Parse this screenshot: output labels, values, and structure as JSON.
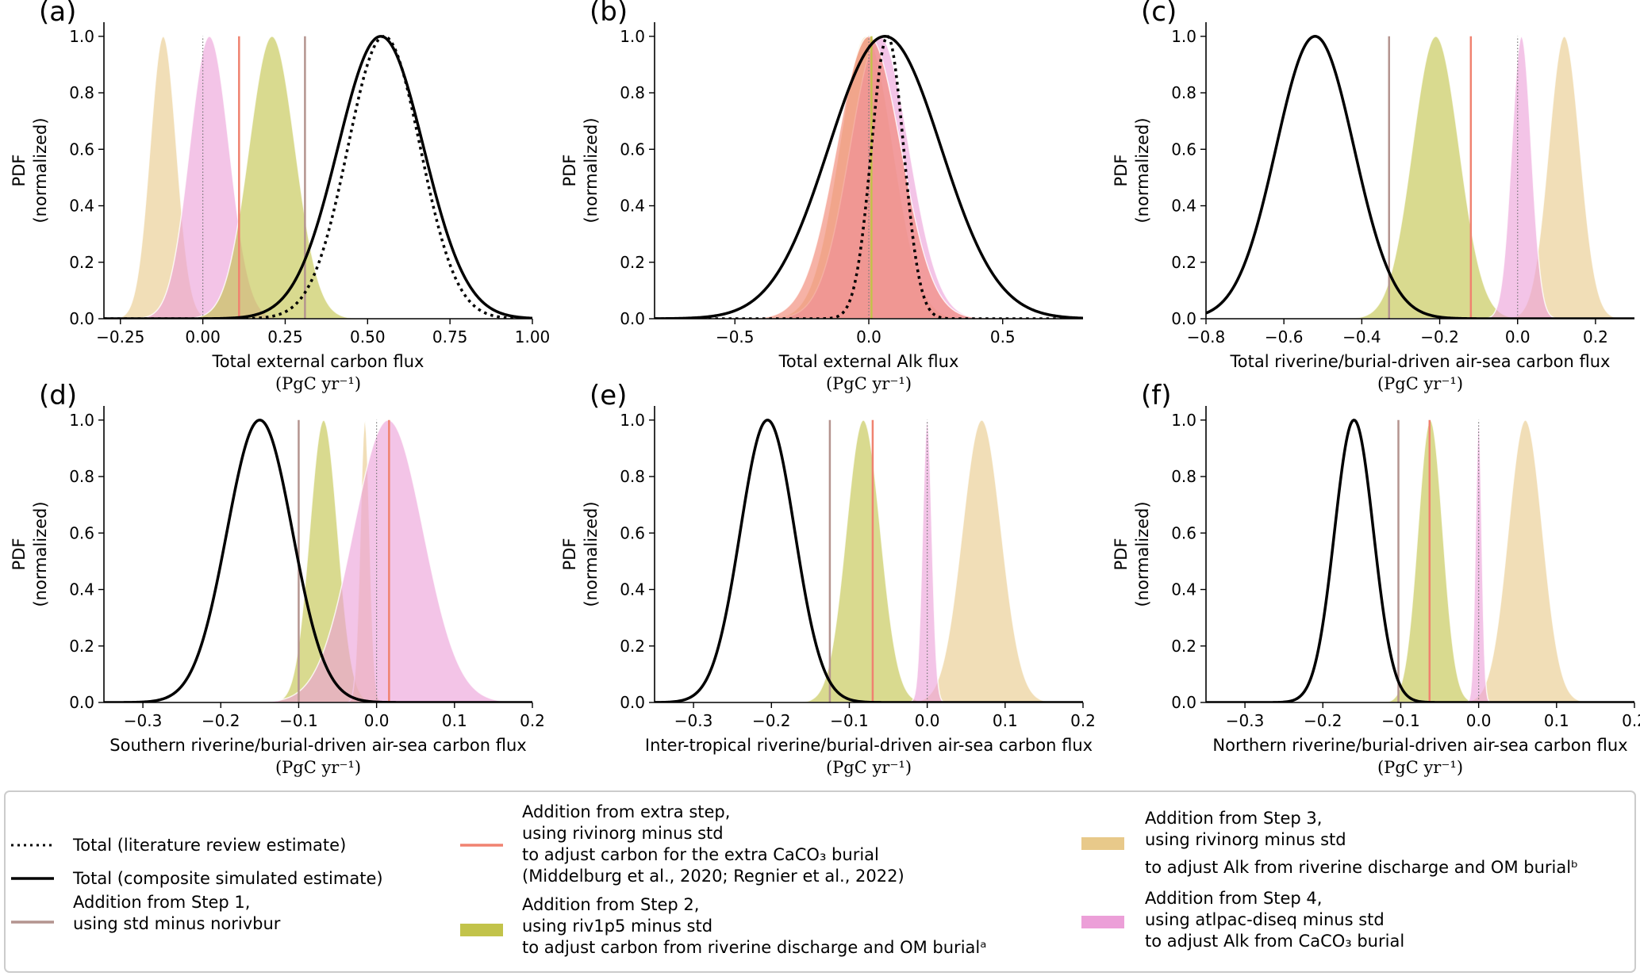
{
  "figure": {
    "y_label_line1": "PDF",
    "y_label_line2": "(normalized)",
    "unit_label": "(PgC yr⁻¹)"
  },
  "legend": {
    "literature": "Total (literature review estimate)",
    "composite": "Total (composite simulated estimate)",
    "step1": [
      "Addition from Step 1,",
      "using std minus norivbur"
    ],
    "extra": [
      "Addition from extra step,",
      "using rivinorg minus std",
      "to adjust carbon for the extra CaCO₃ burial",
      "(Middelburg et al., 2020; Regnier et al., 2022)"
    ],
    "step2": [
      "Addition from Step 2,",
      "using riv1p5 minus std",
      "to adjust carbon from riverine discharge and OM burialᵃ"
    ],
    "step3": [
      "Addition from Step 3,",
      "using rivinorg minus std",
      "to adjust Alk from riverine discharge and OM burialᵇ"
    ],
    "step4": [
      "Addition from Step 4,",
      "using atlpac-diseq minus std",
      "to adjust Alk from CaCO₃ burial"
    ]
  },
  "colors": {
    "step1": "#b4948f",
    "extra": "#f08270",
    "step2": "#c2c34a",
    "step3": "#e8c98a",
    "step4": "#ec9fd8",
    "total": "#000000"
  },
  "chart_data": [
    {
      "type": "area",
      "letter": "(a)",
      "xlabel": "Total external carbon flux",
      "xlim": [
        -0.3,
        1.0
      ],
      "ylim": [
        0,
        1.05
      ],
      "xticks": [
        -0.25,
        0.0,
        0.25,
        0.5,
        0.75,
        1.0
      ],
      "xtick_labels": [
        "−0.25",
        "0.00",
        "0.25",
        "0.50",
        "0.75",
        "1.00"
      ],
      "yticks": [
        0.0,
        0.2,
        0.4,
        0.6,
        0.8,
        1.0
      ],
      "ytick_labels": [
        "0.0",
        "0.2",
        "0.4",
        "0.6",
        "0.8",
        "1.0"
      ],
      "series": [
        {
          "name": "Step 3",
          "kind": "fill",
          "color_key": "step3",
          "mean": -0.12,
          "sd": 0.04
        },
        {
          "name": "Step 4",
          "kind": "fill",
          "color_key": "step4",
          "mean": 0.02,
          "sd": 0.06
        },
        {
          "name": "Step 2",
          "kind": "fill",
          "color_key": "step2",
          "mean": 0.21,
          "sd": 0.07
        },
        {
          "name": "Step 1",
          "kind": "vline",
          "color_key": "step1",
          "x": 0.31
        },
        {
          "name": "Extra step",
          "kind": "vline",
          "color_key": "extra",
          "x": 0.11
        },
        {
          "name": "Zero",
          "kind": "zero",
          "x": 0.0
        },
        {
          "name": "Total (composite)",
          "kind": "solid",
          "mean": 0.54,
          "sd": 0.13
        },
        {
          "name": "Total (literature)",
          "kind": "dotted",
          "mean": 0.55,
          "sd": 0.11
        }
      ]
    },
    {
      "type": "area",
      "letter": "(b)",
      "xlabel": "Total external Alk flux",
      "xlim": [
        -0.8,
        0.8
      ],
      "ylim": [
        0,
        1.05
      ],
      "xticks": [
        -0.5,
        0.0,
        0.5
      ],
      "xtick_labels": [
        "−0.5",
        "0.0",
        "0.5"
      ],
      "yticks": [
        0.0,
        0.2,
        0.4,
        0.6,
        0.8,
        1.0
      ],
      "ytick_labels": [
        "0.0",
        "0.2",
        "0.4",
        "0.6",
        "0.8",
        "1.0"
      ],
      "series": [
        {
          "name": "Step 3",
          "kind": "fill",
          "color_key": "step3",
          "mean": -0.01,
          "sd": 0.1
        },
        {
          "name": "Step 4",
          "kind": "fill",
          "color_key": "step4",
          "mean": 0.04,
          "sd": 0.11
        },
        {
          "name": "Extra step",
          "kind": "fill",
          "color_key": "extra",
          "mean": 0.0,
          "sd": 0.12
        },
        {
          "name": "Step 2",
          "kind": "vline",
          "color_key": "step2",
          "x": 0.01
        },
        {
          "name": "Zero",
          "kind": "zero",
          "x": 0.0
        },
        {
          "name": "Total (composite)",
          "kind": "solid",
          "mean": 0.06,
          "sd": 0.21
        },
        {
          "name": "Total (literature)",
          "kind": "dotted",
          "mean": 0.07,
          "sd": 0.06
        }
      ]
    },
    {
      "type": "area",
      "letter": "(c)",
      "xlabel": "Total riverine/burial-driven air-sea carbon flux",
      "xlim": [
        -0.8,
        0.3
      ],
      "ylim": [
        0,
        1.05
      ],
      "xticks": [
        -0.8,
        -0.6,
        -0.4,
        -0.2,
        0.0,
        0.2
      ],
      "xtick_labels": [
        "−0.8",
        "−0.6",
        "−0.4",
        "−0.2",
        "0.0",
        "0.2"
      ],
      "yticks": [
        0.0,
        0.2,
        0.4,
        0.6,
        0.8,
        1.0
      ],
      "ytick_labels": [
        "0.0",
        "0.2",
        "0.4",
        "0.6",
        "0.8",
        "1.0"
      ],
      "series": [
        {
          "name": "Step 2",
          "kind": "fill",
          "color_key": "step2",
          "mean": -0.21,
          "sd": 0.06
        },
        {
          "name": "Step 3",
          "kind": "fill",
          "color_key": "step3",
          "mean": 0.12,
          "sd": 0.04
        },
        {
          "name": "Step 4",
          "kind": "fill",
          "color_key": "step4",
          "mean": 0.01,
          "sd": 0.025
        },
        {
          "name": "Step 1",
          "kind": "vline",
          "color_key": "step1",
          "x": -0.33
        },
        {
          "name": "Extra step",
          "kind": "vline",
          "color_key": "extra",
          "x": -0.12
        },
        {
          "name": "Zero",
          "kind": "zero",
          "x": 0.0
        },
        {
          "name": "Total (composite)",
          "kind": "solid",
          "mean": -0.52,
          "sd": 0.1
        }
      ]
    },
    {
      "type": "area",
      "letter": "(d)",
      "xlabel": "Southern riverine/burial-driven air-sea carbon flux",
      "xlim": [
        -0.35,
        0.2
      ],
      "ylim": [
        0,
        1.05
      ],
      "xticks": [
        -0.3,
        -0.2,
        -0.1,
        0.0,
        0.1,
        0.2
      ],
      "xtick_labels": [
        "−0.3",
        "−0.2",
        "−0.1",
        "0.0",
        "0.1",
        "0.2"
      ],
      "yticks": [
        0.0,
        0.2,
        0.4,
        0.6,
        0.8,
        1.0
      ],
      "ytick_labels": [
        "0.0",
        "0.2",
        "0.4",
        "0.6",
        "0.8",
        "1.0"
      ],
      "series": [
        {
          "name": "Step 2",
          "kind": "fill",
          "color_key": "step2",
          "mean": -0.068,
          "sd": 0.018
        },
        {
          "name": "Step 3",
          "kind": "fill",
          "color_key": "step3",
          "mean": -0.015,
          "sd": 0.006
        },
        {
          "name": "Step 4",
          "kind": "fill",
          "color_key": "step4",
          "mean": 0.015,
          "sd": 0.045
        },
        {
          "name": "Step 1",
          "kind": "vline",
          "color_key": "step1",
          "x": -0.1
        },
        {
          "name": "Extra step",
          "kind": "vline",
          "color_key": "extra",
          "x": 0.016
        },
        {
          "name": "Zero",
          "kind": "zero",
          "x": 0.0
        },
        {
          "name": "Total (composite)",
          "kind": "solid",
          "mean": -0.15,
          "sd": 0.042
        }
      ]
    },
    {
      "type": "area",
      "letter": "(e)",
      "xlabel": "Inter-tropical riverine/burial-driven air-sea carbon flux",
      "xlim": [
        -0.35,
        0.2
      ],
      "ylim": [
        0,
        1.05
      ],
      "xticks": [
        -0.3,
        -0.2,
        -0.1,
        0.0,
        0.1,
        0.2
      ],
      "xtick_labels": [
        "−0.3",
        "−0.2",
        "−0.1",
        "0.0",
        "0.1",
        "0.2"
      ],
      "yticks": [
        0.0,
        0.2,
        0.4,
        0.6,
        0.8,
        1.0
      ],
      "ytick_labels": [
        "0.0",
        "0.2",
        "0.4",
        "0.6",
        "0.8",
        "1.0"
      ],
      "series": [
        {
          "name": "Step 2",
          "kind": "fill",
          "color_key": "step2",
          "mean": -0.082,
          "sd": 0.022
        },
        {
          "name": "Step 3",
          "kind": "fill",
          "color_key": "step3",
          "mean": 0.07,
          "sd": 0.025
        },
        {
          "name": "Step 4",
          "kind": "fill",
          "color_key": "step4",
          "mean": 0.0,
          "sd": 0.006
        },
        {
          "name": "Step 1",
          "kind": "vline",
          "color_key": "step1",
          "x": -0.125
        },
        {
          "name": "Extra step",
          "kind": "vline",
          "color_key": "extra",
          "x": -0.07
        },
        {
          "name": "Zero",
          "kind": "zero",
          "x": 0.0
        },
        {
          "name": "Total (composite)",
          "kind": "solid",
          "mean": -0.205,
          "sd": 0.035
        }
      ]
    },
    {
      "type": "area",
      "letter": "(f)",
      "xlabel": "Northern riverine/burial-driven air-sea carbon flux",
      "xlim": [
        -0.35,
        0.2
      ],
      "ylim": [
        0,
        1.05
      ],
      "xticks": [
        -0.3,
        -0.2,
        -0.1,
        0.0,
        0.1,
        0.2
      ],
      "xtick_labels": [
        "−0.3",
        "−0.2",
        "−0.1",
        "0.0",
        "0.1",
        "0.2"
      ],
      "yticks": [
        0.0,
        0.2,
        0.4,
        0.6,
        0.8,
        1.0
      ],
      "ytick_labels": [
        "0.0",
        "0.2",
        "0.4",
        "0.6",
        "0.8",
        "1.0"
      ],
      "series": [
        {
          "name": "Step 2",
          "kind": "fill",
          "color_key": "step2",
          "mean": -0.062,
          "sd": 0.016
        },
        {
          "name": "Step 3",
          "kind": "fill",
          "color_key": "step3",
          "mean": 0.06,
          "sd": 0.022
        },
        {
          "name": "Step 4",
          "kind": "fill",
          "color_key": "step4",
          "mean": 0.0,
          "sd": 0.004
        },
        {
          "name": "Step 1",
          "kind": "vline",
          "color_key": "step1",
          "x": -0.103
        },
        {
          "name": "Extra step",
          "kind": "vline",
          "color_key": "extra",
          "x": -0.063
        },
        {
          "name": "Zero",
          "kind": "zero",
          "x": 0.0
        },
        {
          "name": "Total (composite)",
          "kind": "solid",
          "mean": -0.16,
          "sd": 0.025
        }
      ]
    }
  ]
}
